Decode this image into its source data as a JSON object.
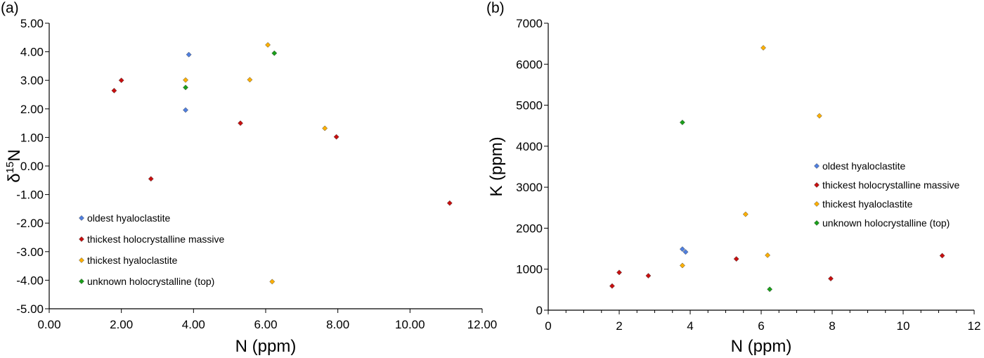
{
  "colors": {
    "oldest_hyaloclastite": "#4f7fe0",
    "thickest_holocrystalline_massive": "#c80f0f",
    "thickest_hyaloclastite": "#ffb000",
    "unknown_holocrystalline_top": "#1aa01a"
  },
  "chart_data": [
    {
      "type": "scatter",
      "panel_label": "(a)",
      "xlabel": "N (ppm)",
      "ylabel_main": "δ",
      "ylabel_sup": "15",
      "ylabel_end": "N",
      "xlim": [
        0,
        12
      ],
      "ylim": [
        -5,
        5
      ],
      "x_ticks": [
        "0.00",
        "2.00",
        "4.00",
        "6.00",
        "8.00",
        "10.00",
        "12.00"
      ],
      "y_ticks": [
        "-5.00",
        "-4.00",
        "-3.00",
        "-2.00",
        "-1.00",
        "0.00",
        "1.00",
        "2.00",
        "3.00",
        "4.00",
        "5.00"
      ],
      "marker": "diamond",
      "legend_position": "bottom-left",
      "series": [
        {
          "name": "oldest hyaloclastite",
          "color": "#4f7fe0",
          "points": [
            [
              3.78,
              1.96
            ],
            [
              3.87,
              3.9
            ]
          ]
        },
        {
          "name": "thickest holocrystalline massive",
          "color": "#c80f0f",
          "points": [
            [
              1.8,
              2.64
            ],
            [
              2.0,
              3.0
            ],
            [
              2.82,
              -0.45
            ],
            [
              5.3,
              1.5
            ],
            [
              7.96,
              1.02
            ],
            [
              11.1,
              -1.3
            ]
          ]
        },
        {
          "name": "thickest hyaloclastite",
          "color": "#ffb000",
          "points": [
            [
              3.78,
              3.01
            ],
            [
              5.56,
              3.02
            ],
            [
              6.06,
              4.24
            ],
            [
              7.64,
              1.32
            ],
            [
              6.18,
              -4.05
            ]
          ]
        },
        {
          "name": "unknown holocrystalline (top)",
          "color": "#1aa01a",
          "points": [
            [
              3.78,
              2.75
            ],
            [
              6.24,
              3.95
            ]
          ]
        }
      ]
    },
    {
      "type": "scatter",
      "panel_label": "(b)",
      "xlabel": "N (ppm)",
      "ylabel": "K (ppm)",
      "xlim": [
        0,
        12
      ],
      "ylim": [
        0,
        7000
      ],
      "x_ticks": [
        "0",
        "2",
        "4",
        "6",
        "8",
        "10",
        "12"
      ],
      "y_ticks": [
        "0",
        "1000",
        "2000",
        "3000",
        "4000",
        "5000",
        "6000",
        "7000"
      ],
      "marker": "diamond",
      "legend_position": "center-right",
      "series": [
        {
          "name": "oldest hyaloclastite",
          "color": "#4f7fe0",
          "points": [
            [
              3.78,
              1490
            ],
            [
              3.87,
              1420
            ]
          ]
        },
        {
          "name": "thickest holocrystalline massive",
          "color": "#c80f0f",
          "points": [
            [
              1.8,
              590
            ],
            [
              2.0,
              920
            ],
            [
              2.82,
              840
            ],
            [
              5.3,
              1250
            ],
            [
              7.96,
              770
            ],
            [
              11.1,
              1330
            ]
          ]
        },
        {
          "name": "thickest hyaloclastite",
          "color": "#ffb000",
          "points": [
            [
              3.78,
              1090
            ],
            [
              5.56,
              2340
            ],
            [
              6.06,
              6400
            ],
            [
              6.18,
              1340
            ],
            [
              7.64,
              4740
            ]
          ]
        },
        {
          "name": "unknown holocrystalline (top)",
          "color": "#1aa01a",
          "points": [
            [
              3.78,
              4580
            ],
            [
              6.24,
              510
            ]
          ]
        }
      ]
    }
  ]
}
